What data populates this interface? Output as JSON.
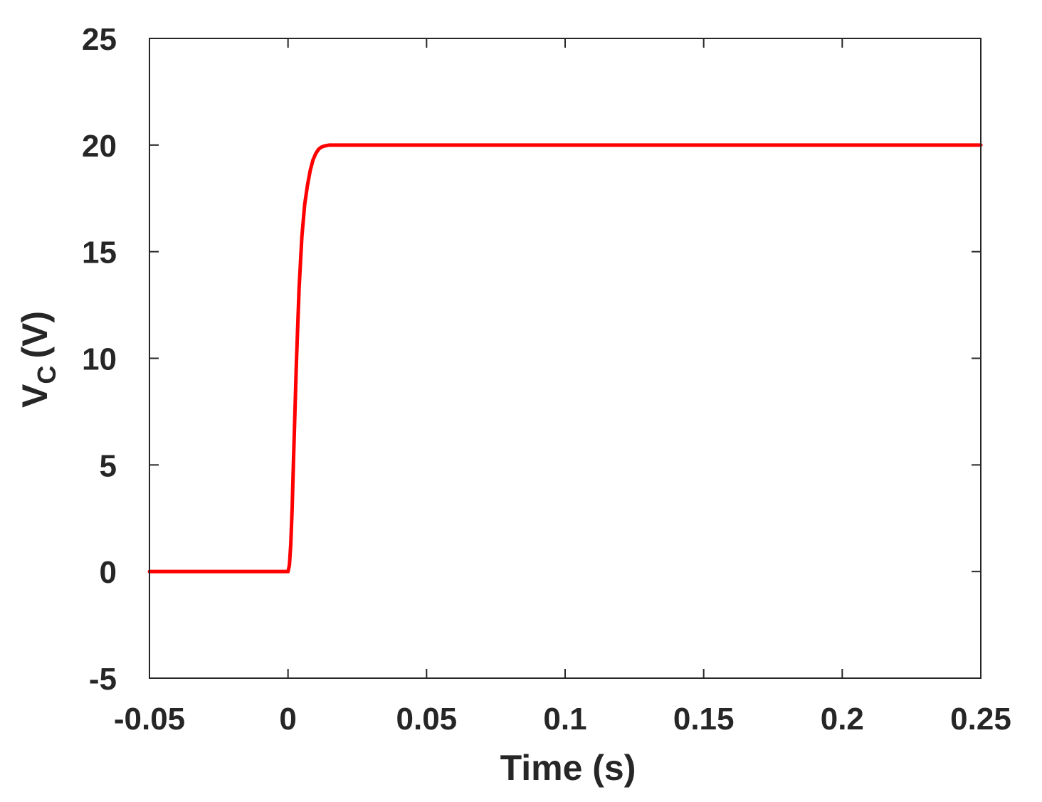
{
  "chart_data": {
    "type": "line",
    "xlabel": "Time (s)",
    "ylabel": {
      "main": "V",
      "subscript": "C",
      "unit": "(V)"
    },
    "xlim": [
      -0.05,
      0.25
    ],
    "ylim": [
      -5,
      25
    ],
    "xticks": [
      -0.05,
      0,
      0.05,
      0.1,
      0.15,
      0.2,
      0.25
    ],
    "xtick_labels": [
      "-0.05",
      "0",
      "0.05",
      "0.1",
      "0.15",
      "0.2",
      "0.25"
    ],
    "yticks": [
      -5,
      0,
      5,
      10,
      15,
      20,
      25
    ],
    "ytick_labels": [
      "-5",
      "0",
      "5",
      "10",
      "15",
      "20",
      "25"
    ],
    "grid": false,
    "box": true,
    "series": [
      {
        "color": "#ff0000",
        "x": [
          -0.05,
          -0.0005,
          0,
          0.0005,
          0.001,
          0.0015,
          0.002,
          0.003,
          0.004,
          0.005,
          0.006,
          0.007,
          0.008,
          0.009,
          0.01,
          0.011,
          0.012,
          0.013,
          0.014,
          0.015,
          0.017,
          0.02,
          0.025,
          0.05,
          0.1,
          0.15,
          0.2,
          0.25
        ],
        "y": [
          0,
          0,
          0,
          0.3,
          1.3,
          3.0,
          5.3,
          9.7,
          13.3,
          15.7,
          17.2,
          18.1,
          18.8,
          19.3,
          19.6,
          19.8,
          19.9,
          19.95,
          19.98,
          20.0,
          20.0,
          20.0,
          20.0,
          20.0,
          20.0,
          20.0,
          20.0,
          20.0
        ]
      }
    ]
  }
}
